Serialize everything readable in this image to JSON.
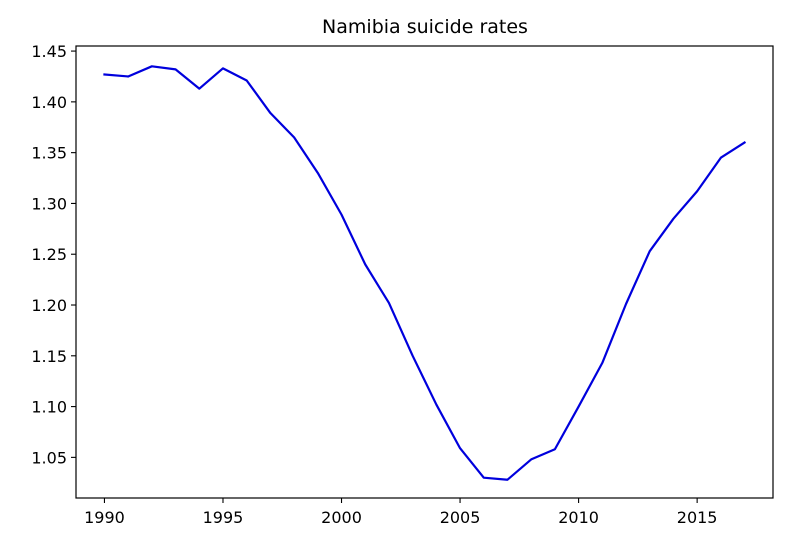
{
  "chart_data": {
    "type": "line",
    "title": "Namibia suicide rates",
    "xlabel": "",
    "ylabel": "",
    "xlim": [
      1988.8,
      2018.2
    ],
    "ylim": [
      1.01,
      1.455
    ],
    "x_ticks": [
      1990,
      1995,
      2000,
      2005,
      2010,
      2015
    ],
    "x_tick_labels": [
      "1990",
      "1995",
      "2000",
      "2005",
      "2010",
      "2015"
    ],
    "y_ticks": [
      1.05,
      1.1,
      1.15,
      1.2,
      1.25,
      1.3,
      1.35,
      1.4,
      1.45
    ],
    "y_tick_labels": [
      "1.05",
      "1.10",
      "1.15",
      "1.20",
      "1.25",
      "1.30",
      "1.35",
      "1.40",
      "1.45"
    ],
    "grid": false,
    "legend": "none",
    "series": [
      {
        "color": "#0000dd",
        "x": [
          1990,
          1991,
          1992,
          1993,
          1994,
          1995,
          1996,
          1997,
          1998,
          1999,
          2000,
          2001,
          2002,
          2003,
          2004,
          2005,
          2006,
          2007,
          2008,
          2009,
          2010,
          2011,
          2012,
          2013,
          2014,
          2015,
          2016,
          2017
        ],
        "y": [
          1.427,
          1.425,
          1.435,
          1.432,
          1.413,
          1.433,
          1.421,
          1.389,
          1.365,
          1.33,
          1.289,
          1.24,
          1.202,
          1.15,
          1.102,
          1.059,
          1.03,
          1.028,
          1.048,
          1.058,
          1.1,
          1.143,
          1.201,
          1.253,
          1.285,
          1.312,
          1.345,
          1.36
        ]
      }
    ]
  }
}
